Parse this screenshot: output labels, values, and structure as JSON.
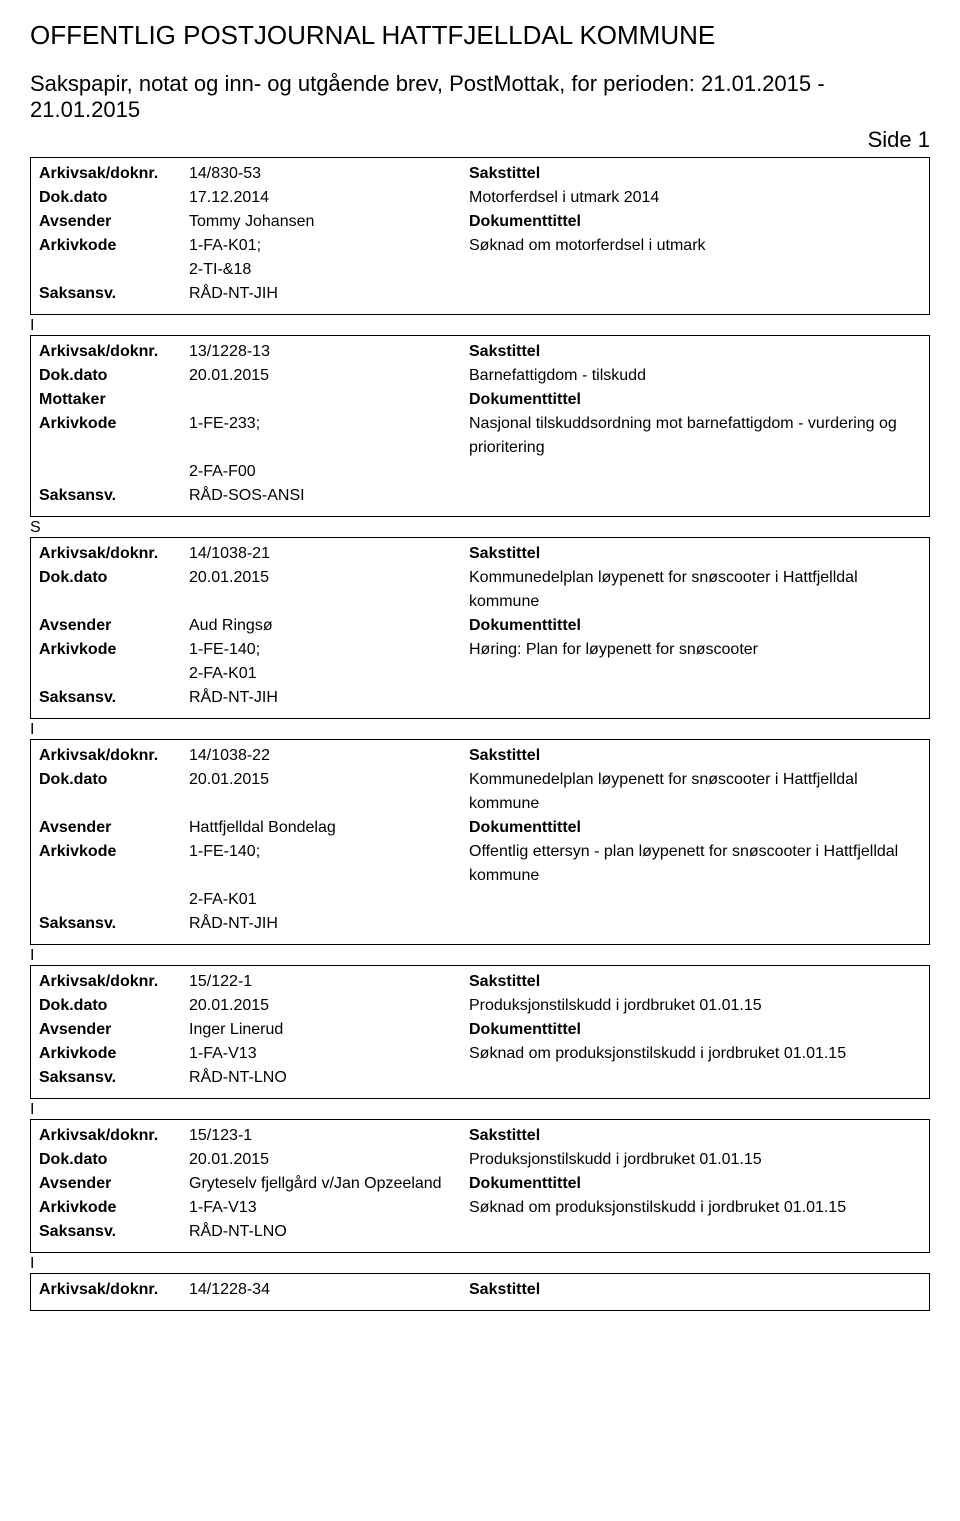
{
  "header": {
    "title": "OFFENTLIG POSTJOURNAL HATTFJELLDAL KOMMUNE",
    "subtitle": "Sakspapir, notat og inn- og utgående brev, PostMottak, for perioden: 21.01.2015 - 21.01.2015",
    "side": "Side 1"
  },
  "labels": {
    "arkivsak": "Arkivsak/doknr.",
    "dokdato": "Dok.dato",
    "avsender": "Avsender",
    "mottaker": "Mottaker",
    "arkivkode": "Arkivkode",
    "saksansv": "Saksansv.",
    "sakstittel": "Sakstittel",
    "dokumenttittel": "Dokumenttittel"
  },
  "records": [
    {
      "type": "",
      "arkivsak": "14/830-53",
      "dokdato": "17.12.2014",
      "party_label": "Avsender",
      "party": "Tommy Johansen",
      "arkivkode": "1-FA-K01; 2-TI-&18",
      "saksansv": "RÅD-NT-JIH",
      "sakstittel": "Motorferdsel i utmark 2014",
      "dokumenttittel": "Søknad om motorferdsel i utmark"
    },
    {
      "type": "I",
      "arkivsak": "13/1228-13",
      "dokdato": "20.01.2015",
      "party_label": "Mottaker",
      "party": "",
      "arkivkode": "1-FE-233; 2-FA-F00",
      "saksansv": "RÅD-SOS-ANSI",
      "sakstittel": "Barnefattigdom - tilskudd",
      "dokumenttittel": "Nasjonal tilskuddsordning mot barnefattigdom - vurdering og prioritering"
    },
    {
      "type": "S",
      "arkivsak": "14/1038-21",
      "dokdato": "20.01.2015",
      "party_label": "Avsender",
      "party": "Aud Ringsø",
      "arkivkode": "1-FE-140; 2-FA-K01",
      "saksansv": "RÅD-NT-JIH",
      "sakstittel": "Kommunedelplan løypenett for snøscooter i Hattfjelldal kommune",
      "dokumenttittel": "Høring: Plan for løypenett for snøscooter"
    },
    {
      "type": "I",
      "arkivsak": "14/1038-22",
      "dokdato": "20.01.2015",
      "party_label": "Avsender",
      "party": "Hattfjelldal Bondelag",
      "arkivkode": "1-FE-140; 2-FA-K01",
      "saksansv": "RÅD-NT-JIH",
      "sakstittel": "Kommunedelplan løypenett for snøscooter i Hattfjelldal kommune",
      "dokumenttittel": "Offentlig ettersyn - plan løypenett for snøscooter i Hattfjelldal kommune"
    },
    {
      "type": "I",
      "arkivsak": "15/122-1",
      "dokdato": "20.01.2015",
      "party_label": "Avsender",
      "party": "Inger Linerud",
      "arkivkode": "1-FA-V13",
      "saksansv": "RÅD-NT-LNO",
      "sakstittel": "Produksjonstilskudd i jordbruket 01.01.15",
      "dokumenttittel": "Søknad om produksjonstilskudd i jordbruket 01.01.15"
    },
    {
      "type": "I",
      "arkivsak": "15/123-1",
      "dokdato": "20.01.2015",
      "party_label": "Avsender",
      "party": "Gryteselv fjellgård v/Jan Opzeeland",
      "arkivkode": "1-FA-V13",
      "saksansv": "RÅD-NT-LNO",
      "sakstittel": "Produksjonstilskudd i jordbruket 01.01.15",
      "dokumenttittel": "Søknad om produksjonstilskudd i jordbruket 01.01.15"
    }
  ],
  "partial_record": {
    "type": "I",
    "arkivsak": "14/1228-34",
    "sakstittel_label": "Sakstittel"
  }
}
